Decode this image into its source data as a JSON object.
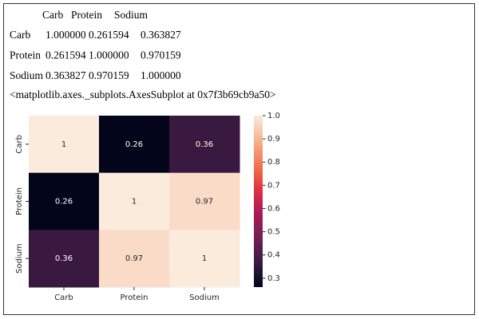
{
  "table": {
    "header": [
      "Carb",
      "Protein",
      "Sodium"
    ],
    "rows": [
      [
        "Carb",
        "1.000000",
        "0.261594",
        "0.363827"
      ],
      [
        "Protein",
        "0.261594",
        "1.000000",
        "0.970159"
      ],
      [
        "Sodium",
        "0.363827",
        "0.970159",
        "1.000000"
      ]
    ]
  },
  "repr": "<matplotlib.axes._subplots.AxesSubplot at 0x7f3b69cb9a50>",
  "chart_data": {
    "type": "heatmap",
    "x_categories": [
      "Carb",
      "Protein",
      "Sodium"
    ],
    "y_categories": [
      "Carb",
      "Protein",
      "Sodium"
    ],
    "values": [
      [
        1.0,
        0.261594,
        0.363827
      ],
      [
        0.261594,
        1.0,
        0.970159
      ],
      [
        0.363827,
        0.970159,
        1.0
      ]
    ],
    "value_labels": [
      [
        "1",
        "0.26",
        "0.36"
      ],
      [
        "0.26",
        "1",
        "0.97"
      ],
      [
        "0.36",
        "0.97",
        "1"
      ]
    ],
    "clim": [
      0.261594,
      1.0
    ],
    "cticks": [
      0.3,
      0.4,
      0.5,
      0.6,
      0.7,
      0.8,
      0.9,
      {
        "value": 1.0,
        "label": "1.0"
      }
    ],
    "colors": [
      "#03051a",
      "#3b1a40",
      "#701f57",
      "#ad1759",
      "#e13342",
      "#f37651",
      "#f6b48f",
      "#faebdd"
    ]
  }
}
